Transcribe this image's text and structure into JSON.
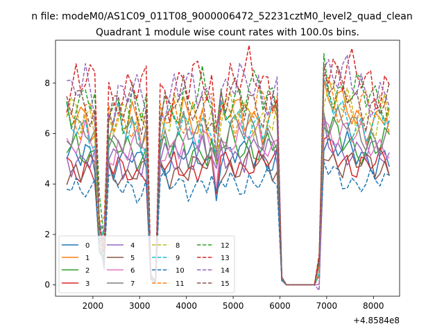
{
  "figure": {
    "suptitle": "n file: modeM0/AS1C09_011T08_9000006472_52231cztM0_level2_quad_clean"
  },
  "chart_data": {
    "type": "line",
    "title": "Quadrant 1 module wise count rates with 100.0s bins.",
    "xlabel": "",
    "ylabel": "",
    "x_offset_label": "+4.8584e8",
    "xlim": [
      1200,
      8560
    ],
    "ylim": [
      -0.45,
      9.7
    ],
    "xticks": [
      2000,
      3000,
      4000,
      5000,
      6000,
      7000,
      8000
    ],
    "xtick_labels": [
      "2000",
      "3000",
      "4000",
      "5000",
      "6000",
      "7000",
      "8000"
    ],
    "yticks": [
      0,
      2,
      4,
      6,
      8
    ],
    "ytick_labels": [
      "0",
      "2",
      "4",
      "6",
      "8"
    ],
    "grid": false,
    "legend_position": "lower-left",
    "legend_columns": 4,
    "x_start": 1440,
    "x_step": 100,
    "profile": {
      "x": [
        1440,
        1540,
        1640,
        1740,
        1840,
        1940,
        2040,
        2140,
        2240,
        2340,
        2440,
        2540,
        2640,
        2740,
        2840,
        2940,
        3040,
        3140,
        3240,
        3340,
        3440,
        3540,
        3640,
        3740,
        3840,
        3940,
        4040,
        4140,
        4240,
        4340,
        4440,
        4540,
        4640,
        4740,
        4840,
        4940,
        5040,
        5140,
        5240,
        5340,
        5440,
        5540,
        5640,
        5740,
        5840,
        5940,
        6040,
        6140,
        6240,
        6340,
        6440,
        6540,
        6640,
        6740,
        6840,
        6940,
        7040,
        7140,
        7240,
        7340,
        7440,
        7540,
        7640,
        7740,
        7840,
        7940,
        8040,
        8140,
        8240,
        8340
      ],
      "y": [
        1.0,
        0.98,
        1.01,
        0.97,
        1.02,
        0.99,
        0.97,
        0.35,
        0.25,
        0.98,
        0.96,
        1.0,
        0.95,
        0.97,
        1.0,
        0.96,
        0.94,
        0.98,
        0.05,
        0.02,
        0.97,
        1.0,
        0.96,
        1.02,
        0.99,
        1.03,
        0.97,
        1.01,
        0.99,
        1.04,
        0.98,
        1.01,
        0.8,
        1.02,
        1.0,
        1.05,
        1.01,
        1.03,
        1.0,
        1.06,
        1.02,
        1.04,
        1.0,
        1.03,
        1.01,
        1.02,
        0.04,
        0.0,
        0.0,
        0.0,
        0.0,
        0.0,
        0.0,
        0.0,
        0.12,
        1.18,
        1.12,
        1.1,
        1.08,
        1.05,
        1.07,
        1.04,
        1.02,
        1.03,
        1.0,
        1.02,
        0.99,
        1.01,
        1.03,
        1.0
      ]
    },
    "series": [
      {
        "name": "0",
        "color": "#1f77b4",
        "dashed": false,
        "level": 5.0
      },
      {
        "name": "1",
        "color": "#ff7f0e",
        "dashed": false,
        "level": 6.5
      },
      {
        "name": "2",
        "color": "#2ca02c",
        "dashed": false,
        "level": 5.4
      },
      {
        "name": "3",
        "color": "#d62728",
        "dashed": false,
        "level": 4.7
      },
      {
        "name": "4",
        "color": "#9467bd",
        "dashed": false,
        "level": 5.1
      },
      {
        "name": "5",
        "color": "#8c564b",
        "dashed": false,
        "level": 4.6
      },
      {
        "name": "6",
        "color": "#e377c2",
        "dashed": false,
        "level": 5.6
      },
      {
        "name": "7",
        "color": "#7f7f7f",
        "dashed": false,
        "level": 5.9
      },
      {
        "name": "8",
        "color": "#bcbd22",
        "dashed": true,
        "level": 6.6
      },
      {
        "name": "9",
        "color": "#17becf",
        "dashed": true,
        "level": 6.3
      },
      {
        "name": "10",
        "color": "#1f77b4",
        "dashed": true,
        "level": 4.0
      },
      {
        "name": "11",
        "color": "#ff7f0e",
        "dashed": true,
        "level": 6.8
      },
      {
        "name": "12",
        "color": "#2ca02c",
        "dashed": true,
        "level": 7.3
      },
      {
        "name": "13",
        "color": "#d62728",
        "dashed": true,
        "level": 7.9
      },
      {
        "name": "14",
        "color": "#9467bd",
        "dashed": true,
        "level": 7.6
      },
      {
        "name": "15",
        "color": "#8c564b",
        "dashed": true,
        "level": 7.1
      }
    ]
  }
}
